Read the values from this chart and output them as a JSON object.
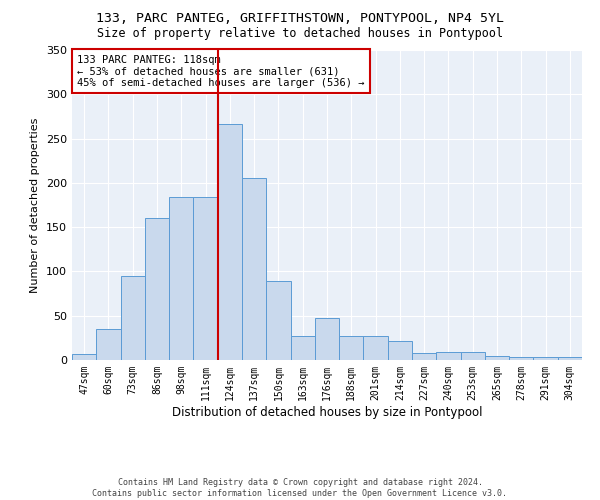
{
  "title1": "133, PARC PANTEG, GRIFFITHSTOWN, PONTYPOOL, NP4 5YL",
  "title2": "Size of property relative to detached houses in Pontypool",
  "xlabel": "Distribution of detached houses by size in Pontypool",
  "ylabel": "Number of detached properties",
  "bar_labels": [
    "47sqm",
    "60sqm",
    "73sqm",
    "86sqm",
    "98sqm",
    "111sqm",
    "124sqm",
    "137sqm",
    "150sqm",
    "163sqm",
    "176sqm",
    "188sqm",
    "201sqm",
    "214sqm",
    "227sqm",
    "240sqm",
    "253sqm",
    "265sqm",
    "278sqm",
    "291sqm",
    "304sqm"
  ],
  "bar_values": [
    7,
    35,
    95,
    160,
    184,
    184,
    267,
    205,
    89,
    27,
    47,
    27,
    27,
    21,
    8,
    9,
    9,
    4,
    3,
    3,
    3
  ],
  "bar_color": "#c9d9ed",
  "bar_edge_color": "#5b9bd5",
  "vline_color": "#cc0000",
  "annotation_line1": "133 PARC PANTEG: 118sqm",
  "annotation_line2": "← 53% of detached houses are smaller (631)",
  "annotation_line3": "45% of semi-detached houses are larger (536) →",
  "annotation_box_color": "#ffffff",
  "annotation_box_edge": "#cc0000",
  "ylim": [
    0,
    350
  ],
  "yticks": [
    0,
    50,
    100,
    150,
    200,
    250,
    300,
    350
  ],
  "plot_bg_color": "#eaf0f8",
  "footer1": "Contains HM Land Registry data © Crown copyright and database right 2024.",
  "footer2": "Contains public sector information licensed under the Open Government Licence v3.0."
}
